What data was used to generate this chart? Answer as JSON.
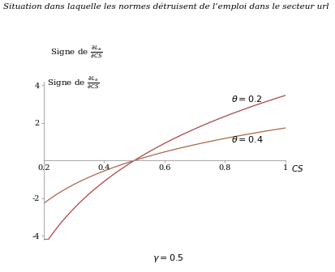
{
  "title_line1": "Situation dans laquelle les normes détruisent de l’emploi dans le secteur url",
  "ylabel_text": "Signe de $\\frac{\\partial L_a}{\\partial CS}$",
  "xlabel_text": "$CS$",
  "gamma": 0.5,
  "theta_values": [
    0.2,
    0.4
  ],
  "cs_min": 0.2,
  "cs_max": 1.0,
  "y_min": -4.2,
  "y_max": 4.2,
  "x_ticks": [
    0.2,
    0.4,
    0.6,
    0.8,
    1.0
  ],
  "y_ticks": [
    -4,
    -2,
    2,
    4
  ],
  "curve_color_theta02": "#aa4444",
  "curve_color_theta04": "#aa6644",
  "background_color": "#ffffff",
  "label_theta02": "$\\theta = 0.2$",
  "label_theta04": "$\\theta = 0.4$",
  "gamma_label": "$\\gamma = 0.5$",
  "title_fontsize": 7.5,
  "label_fontsize": 7.5,
  "tick_fontsize": 7,
  "annotation_fontsize": 8
}
